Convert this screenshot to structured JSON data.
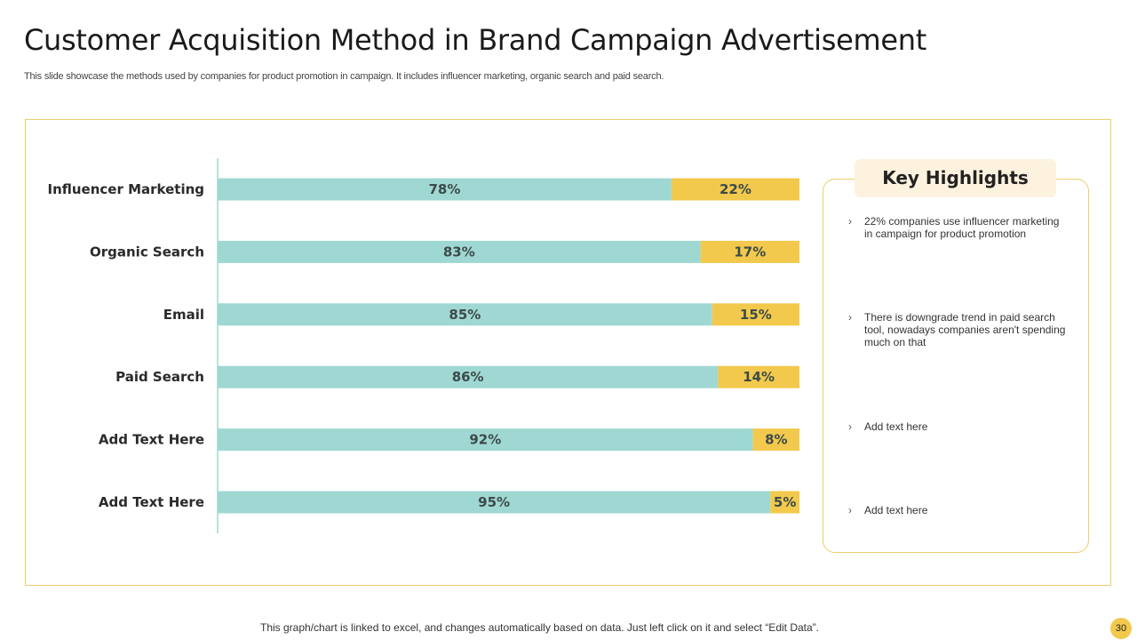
{
  "slide": {
    "title": "Customer Acquisition Method in Brand Campaign Advertisement",
    "subtitle": "This slide showcase the methods used by companies for product promotion in campaign. It includes influencer marketing, organic search and paid search.",
    "footer": "This graph/chart is linked to excel, and changes automatically based on data. Just left click on it and select “Edit Data”.",
    "page_number": "30"
  },
  "chart_data": {
    "type": "bar",
    "orientation": "horizontal",
    "stacked": true,
    "title": "",
    "xlabel": "",
    "ylabel": "",
    "xlim": [
      0,
      100
    ],
    "categories": [
      "Influencer Marketing",
      "Organic Search",
      "Email",
      "Paid Search",
      "Add Text Here",
      "Add Text Here"
    ],
    "series": [
      {
        "name": "Series 1",
        "values": [
          78,
          83,
          85,
          86,
          92,
          95
        ],
        "labels": [
          "78%",
          "83%",
          "85%",
          "86%",
          "92%",
          "95%"
        ]
      },
      {
        "name": "Series 2",
        "values": [
          22,
          17,
          15,
          14,
          8,
          5
        ],
        "labels": [
          "22%",
          "17%",
          "15%",
          "14%",
          "8%",
          "5%"
        ]
      }
    ],
    "colors": [
      "#9fd8d2",
      "#f2c94c"
    ],
    "legend": "none",
    "grid": false
  },
  "highlights": {
    "title": "Key Highlights",
    "items": [
      "22% companies use influencer marketing in campaign for product promotion",
      "There is downgrade trend in paid search tool, nowadays companies aren't spending much on that",
      "Add text here",
      "Add text here"
    ]
  },
  "colors": {
    "accent_teal": "#9fd8d2",
    "accent_yellow": "#f2c94c",
    "panel_border": "#f0cc6a",
    "highlight_bg": "#fcf2de"
  }
}
